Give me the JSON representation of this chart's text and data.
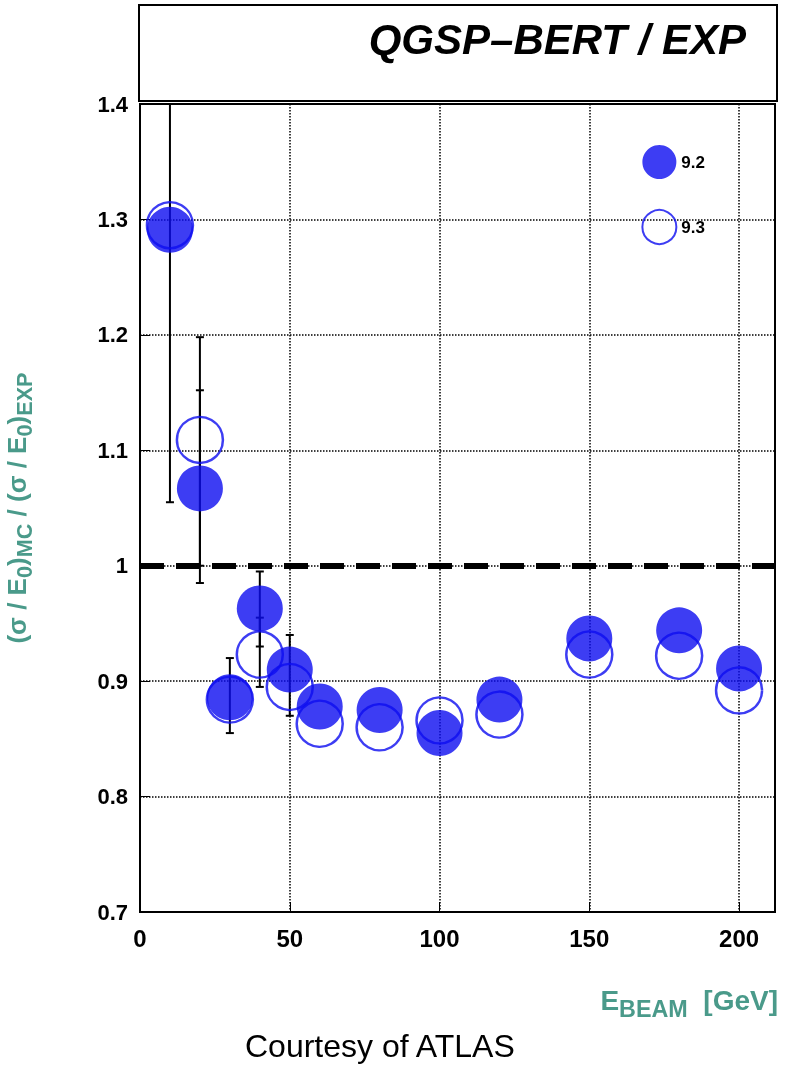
{
  "chart_data": {
    "type": "scatter",
    "title": "QGSP–BERT / EXP",
    "xlabel": "E$_{BEAM}$  [GeV]",
    "ylabel": "(σ / E$_{0}$)$_{MC}$ / (σ / E$_{0}$)$_{EXP}$",
    "annotations": [
      "Courtesy of ATLAS"
    ],
    "x": [
      10,
      20,
      30,
      40,
      50,
      60,
      80,
      100,
      120,
      150,
      180,
      200
    ],
    "series": [
      {
        "name": "9.2",
        "color": "#0c0cf0",
        "values": [
          1.291,
          1.067,
          0.886,
          0.963,
          0.91,
          0.878,
          0.875,
          0.855,
          0.884,
          0.937,
          0.944,
          0.911
        ],
        "errors": [
          [
            1.055,
            1.4
          ],
          [
            1.0,
            1.152
          ],
          [
            0.855,
            0.92
          ],
          [
            0.93,
            0.995
          ],
          [
            0.87,
            0.94
          ],
          null,
          null,
          null,
          null,
          null,
          null,
          null
        ]
      },
      {
        "name": "9.3",
        "color": "#0c0cf0",
        "values": [
          1.295,
          1.109,
          0.884,
          0.923,
          0.895,
          0.863,
          0.86,
          0.866,
          0.871,
          0.923,
          0.922,
          0.892
        ],
        "errors": [
          null,
          [
            0.985,
            1.198
          ],
          null,
          [
            0.895,
            0.955
          ],
          null,
          null,
          null,
          null,
          null,
          null,
          null,
          null
        ]
      }
    ],
    "xlim": [
      0,
      212
    ],
    "xticks": [
      0,
      50,
      100,
      150,
      200
    ],
    "ylim": [
      0.7,
      1.4
    ],
    "yticks": [
      0.7,
      0.8,
      0.9,
      1,
      1.1,
      1.2,
      1.3,
      1.4
    ],
    "ref_lines": [
      {
        "axis": "y",
        "value": 1,
        "color": "#000000",
        "line_style": "dashed"
      }
    ],
    "grid": true,
    "legend": "top right",
    "marker": "circle"
  }
}
